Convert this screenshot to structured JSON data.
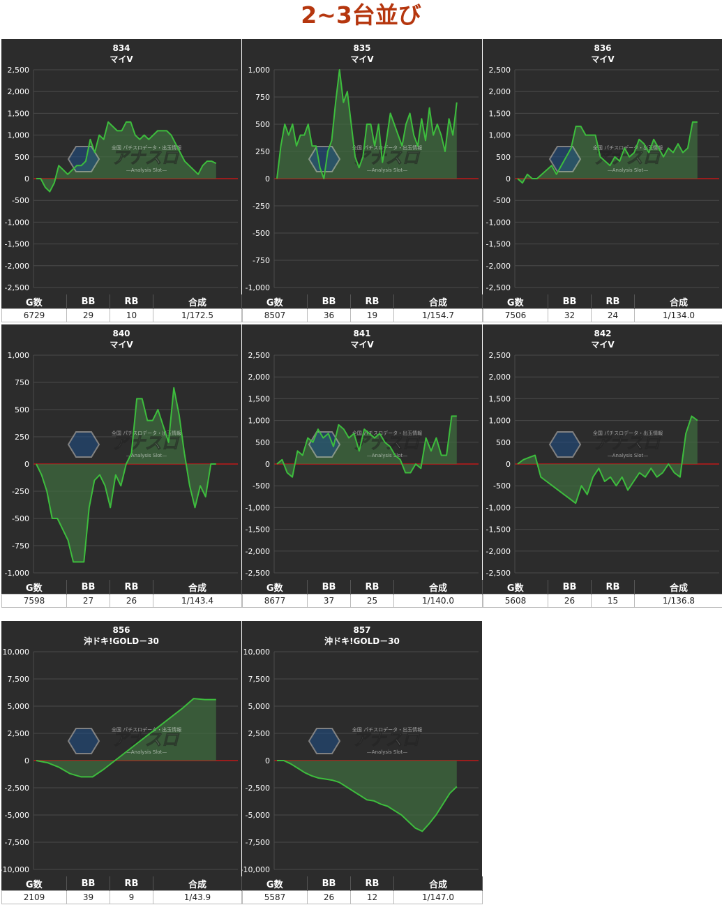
{
  "page": {
    "title": "2~3台並び"
  },
  "table_headers": {
    "games": "G数",
    "bb": "BB",
    "rb": "RB",
    "combined": "合成"
  },
  "colors": {
    "panel_bg": "#2c2c2c",
    "grid": "#4a4a4a",
    "zero_line": "#c01818",
    "series_line": "#3dbd3d",
    "series_fill": "#3f6e3f",
    "title_accent": "#b5360e"
  },
  "watermark": {
    "tagline": "全国 パチスロデータ・出玉情報",
    "logo": "アナスロ",
    "sub": "—Analysis Slot—"
  },
  "chart_data": [
    {
      "type": "area",
      "machine_no": "834",
      "model": "マイV",
      "ylim": [
        -2500,
        2500
      ],
      "yticks": [
        2500,
        2000,
        1500,
        1000,
        500,
        0,
        -500,
        -1000,
        -1500,
        -2000,
        -2500
      ],
      "ytick_labels": [
        "2,500",
        "2,000",
        "1,500",
        "1,000",
        "500",
        "0",
        "-500",
        "-1,000",
        "-1,500",
        "-2,000",
        "-2,500"
      ],
      "values": [
        0,
        0,
        -200,
        -300,
        -100,
        300,
        200,
        100,
        200,
        300,
        300,
        400,
        900,
        600,
        1000,
        900,
        1300,
        1200,
        1100,
        1100,
        1300,
        1300,
        1000,
        900,
        1000,
        900,
        1000,
        1100,
        1100,
        1100,
        1000,
        800,
        600,
        400,
        300,
        200,
        100,
        300,
        400,
        400,
        350
      ],
      "stats": {
        "games": "6729",
        "bb": "29",
        "rb": "10",
        "combined": "1/172.5"
      }
    },
    {
      "type": "area",
      "machine_no": "835",
      "model": "マイV",
      "ylim": [
        -1000,
        1000
      ],
      "yticks": [
        1000,
        750,
        500,
        250,
        0,
        -250,
        -500,
        -750,
        -1000
      ],
      "ytick_labels": [
        "1,000",
        "750",
        "500",
        "250",
        "0",
        "-250",
        "-500",
        "-750",
        "-1,000"
      ],
      "values": [
        0,
        300,
        500,
        400,
        500,
        300,
        400,
        400,
        500,
        300,
        300,
        100,
        0,
        250,
        350,
        700,
        1000,
        700,
        800,
        500,
        200,
        100,
        200,
        500,
        500,
        300,
        500,
        150,
        350,
        600,
        500,
        400,
        300,
        500,
        600,
        400,
        300,
        550,
        350,
        650,
        400,
        500,
        400,
        250,
        550,
        400,
        700
      ],
      "stats": {
        "games": "8507",
        "bb": "36",
        "rb": "19",
        "combined": "1/154.7"
      }
    },
    {
      "type": "area",
      "machine_no": "836",
      "model": "マイV",
      "ylim": [
        -2500,
        2500
      ],
      "yticks": [
        2500,
        2000,
        1500,
        1000,
        500,
        0,
        -500,
        -1000,
        -1500,
        -2000,
        -2500
      ],
      "ytick_labels": [
        "2,500",
        "2,000",
        "1,500",
        "1,000",
        "500",
        "0",
        "-500",
        "-1,000",
        "-1,500",
        "-2,000",
        "-2,500"
      ],
      "values": [
        0,
        -100,
        100,
        0,
        0,
        100,
        200,
        300,
        100,
        300,
        500,
        700,
        1200,
        1200,
        1000,
        1000,
        1000,
        500,
        400,
        300,
        500,
        400,
        700,
        500,
        600,
        900,
        800,
        600,
        900,
        700,
        500,
        700,
        600,
        800,
        600,
        700,
        1300,
        1300
      ],
      "stats": {
        "games": "7506",
        "bb": "32",
        "rb": "24",
        "combined": "1/134.0"
      }
    },
    {
      "type": "area",
      "machine_no": "840",
      "model": "マイV",
      "ylim": [
        -1000,
        1000
      ],
      "yticks": [
        1000,
        750,
        500,
        250,
        0,
        -250,
        -500,
        -750,
        -1000
      ],
      "ytick_labels": [
        "1,000",
        "750",
        "500",
        "250",
        "0",
        "-250",
        "-500",
        "-750",
        "-1,000"
      ],
      "values": [
        0,
        -100,
        -250,
        -500,
        -500,
        -600,
        -700,
        -900,
        -900,
        -900,
        -400,
        -150,
        -100,
        -200,
        -400,
        -100,
        -200,
        0,
        100,
        600,
        600,
        400,
        400,
        500,
        350,
        200,
        700,
        450,
        100,
        -200,
        -400,
        -200,
        -300,
        0,
        0
      ],
      "stats": {
        "games": "7598",
        "bb": "27",
        "rb": "26",
        "combined": "1/143.4"
      }
    },
    {
      "type": "area",
      "machine_no": "841",
      "model": "マイV",
      "ylim": [
        -2500,
        2500
      ],
      "yticks": [
        2500,
        2000,
        1500,
        1000,
        500,
        0,
        -500,
        -1000,
        -1500,
        -2000,
        -2500
      ],
      "ytick_labels": [
        "2,500",
        "2,000",
        "1,500",
        "1,000",
        "500",
        "0",
        "-500",
        "-1,000",
        "-1,500",
        "-2,000",
        "-2,500"
      ],
      "values": [
        0,
        100,
        -200,
        -300,
        300,
        200,
        600,
        500,
        800,
        600,
        700,
        400,
        900,
        800,
        600,
        700,
        300,
        800,
        700,
        600,
        700,
        500,
        400,
        200,
        100,
        -200,
        -200,
        0,
        -100,
        600,
        300,
        600,
        200,
        200,
        1100,
        1100
      ],
      "stats": {
        "games": "8677",
        "bb": "37",
        "rb": "25",
        "combined": "1/140.0"
      }
    },
    {
      "type": "area",
      "machine_no": "842",
      "model": "マイV",
      "ylim": [
        -2500,
        2500
      ],
      "yticks": [
        2500,
        2000,
        1500,
        1000,
        500,
        0,
        -500,
        -1000,
        -1500,
        -2000,
        -2500
      ],
      "ytick_labels": [
        "2,500",
        "2,000",
        "1,500",
        "1,000",
        "500",
        "0",
        "-500",
        "-1,000",
        "-1,500",
        "-2,000",
        "-2,500"
      ],
      "values": [
        0,
        100,
        150,
        200,
        -300,
        -400,
        -500,
        -600,
        -700,
        -800,
        -900,
        -500,
        -700,
        -300,
        -100,
        -400,
        -300,
        -500,
        -300,
        -600,
        -400,
        -200,
        -300,
        -100,
        -300,
        -200,
        0,
        -200,
        -300,
        700,
        1100,
        1000
      ],
      "stats": {
        "games": "5608",
        "bb": "26",
        "rb": "15",
        "combined": "1/136.8"
      }
    },
    {
      "type": "area",
      "machine_no": "856",
      "model": "沖ドキ!GOLD－30",
      "ylim": [
        -10000,
        10000
      ],
      "yticks": [
        10000,
        7500,
        5000,
        2500,
        0,
        -2500,
        -5000,
        -7500,
        -10000
      ],
      "ytick_labels": [
        "10,000",
        "7,500",
        "5,000",
        "2,500",
        "0",
        "-2,500",
        "-5,000",
        "-7,500",
        "-10,000"
      ],
      "values": [
        0,
        -200,
        -600,
        -1200,
        -1500,
        -1500,
        -800,
        0,
        800,
        1600,
        2400,
        3200,
        4000,
        4800,
        5700,
        5600,
        5600
      ],
      "stats": {
        "games": "2109",
        "bb": "39",
        "rb": "9",
        "combined": "1/43.9"
      }
    },
    {
      "type": "area",
      "machine_no": "857",
      "model": "沖ドキ!GOLD－30",
      "ylim": [
        -10000,
        10000
      ],
      "yticks": [
        10000,
        7500,
        5000,
        2500,
        0,
        -2500,
        -5000,
        -7500,
        -10000
      ],
      "ytick_labels": [
        "10,000",
        "7,500",
        "5,000",
        "2,500",
        "0",
        "-2,500",
        "-5,000",
        "-7,500",
        "-10,000"
      ],
      "values": [
        0,
        0,
        -300,
        -700,
        -1100,
        -1400,
        -1600,
        -1700,
        -1800,
        -2000,
        -2400,
        -2800,
        -3200,
        -3600,
        -3700,
        -4000,
        -4200,
        -4600,
        -5000,
        -5600,
        -6200,
        -6500,
        -5800,
        -5000,
        -4000,
        -3000,
        -2400
      ],
      "stats": {
        "games": "5587",
        "bb": "26",
        "rb": "12",
        "combined": "1/147.0"
      }
    }
  ]
}
